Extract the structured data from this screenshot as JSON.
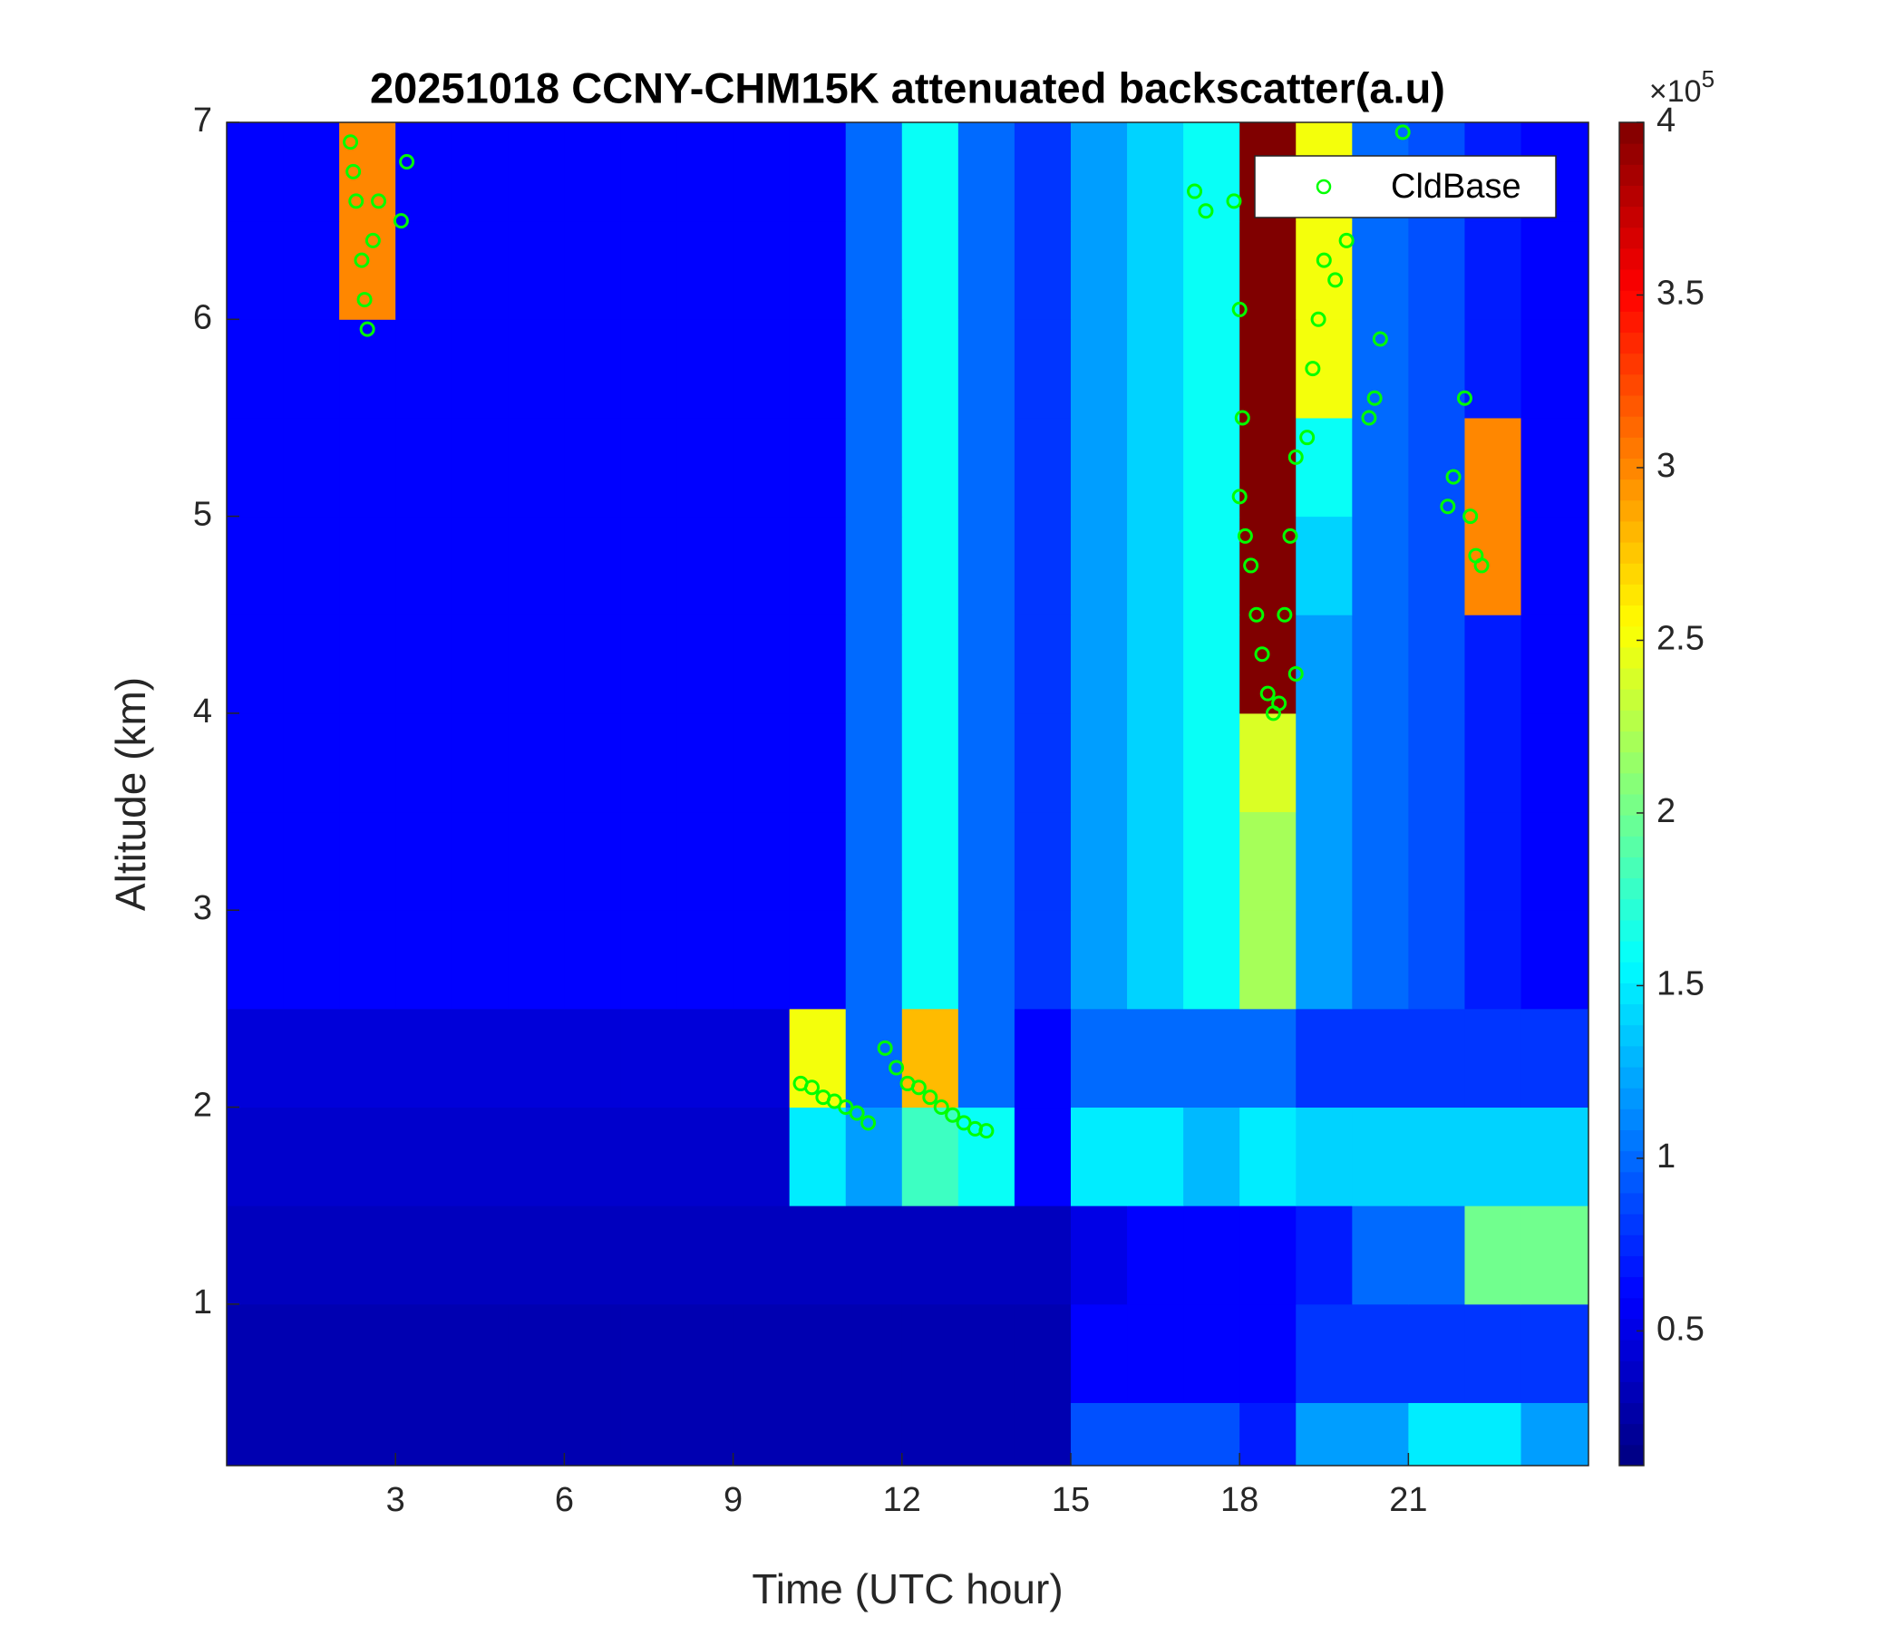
{
  "chart_data": {
    "type": "heatmap",
    "title": "20251018 CCNY-CHM15K attenuated backscatter(a.u)",
    "xlabel": "Time (UTC hour)",
    "ylabel": "Altitude (km)",
    "xlim": [
      0,
      24.2
    ],
    "ylim": [
      0.18,
      7
    ],
    "xticks": [
      3,
      6,
      9,
      12,
      15,
      18,
      21
    ],
    "yticks": [
      1,
      2,
      3,
      4,
      5,
      6,
      7
    ],
    "x_edges": [
      0,
      1,
      2,
      3,
      4,
      5,
      6,
      7,
      8,
      9,
      10,
      11,
      12,
      13,
      14,
      15,
      16,
      17,
      18,
      19,
      20,
      21,
      22,
      23,
      24.2
    ],
    "y_edges": [
      0.18,
      0.5,
      1,
      1.5,
      2,
      2.5,
      3,
      3.5,
      4,
      4.5,
      5,
      5.5,
      6,
      6.5,
      7
    ],
    "z": [
      [
        0.3,
        0.3,
        0.3,
        0.3,
        0.3,
        0.3,
        0.3,
        0.3,
        0.3,
        0.3,
        0.3,
        0.3,
        0.3,
        0.3,
        0.3,
        0.9,
        0.9,
        0.9,
        0.7,
        1.2,
        1.2,
        1.5,
        1.5,
        1.2
      ],
      [
        0.3,
        0.3,
        0.3,
        0.3,
        0.3,
        0.3,
        0.3,
        0.3,
        0.3,
        0.3,
        0.3,
        0.3,
        0.3,
        0.3,
        0.3,
        0.6,
        0.6,
        0.6,
        0.6,
        0.8,
        0.8,
        0.8,
        0.8,
        0.8
      ],
      [
        0.35,
        0.35,
        0.35,
        0.35,
        0.35,
        0.35,
        0.35,
        0.35,
        0.35,
        0.35,
        0.35,
        0.35,
        0.35,
        0.35,
        0.35,
        0.5,
        0.6,
        0.6,
        0.6,
        0.7,
        1,
        1,
        2,
        2
      ],
      [
        0.4,
        0.4,
        0.4,
        0.4,
        0.4,
        0.4,
        0.4,
        0.4,
        0.4,
        0.4,
        1.5,
        1.2,
        1.8,
        1.6,
        0.6,
        1.5,
        1.5,
        1.3,
        1.5,
        1.4,
        1.4,
        1.4,
        1.4,
        1.4
      ],
      [
        0.45,
        0.45,
        0.45,
        0.45,
        0.45,
        0.45,
        0.45,
        0.45,
        0.45,
        0.45,
        2.5,
        1,
        2.8,
        1,
        0.6,
        1,
        1,
        1,
        1,
        0.8,
        0.8,
        0.8,
        0.8,
        0.8
      ],
      [
        0.6,
        0.6,
        0.6,
        0.6,
        0.6,
        0.6,
        0.6,
        0.6,
        0.6,
        0.6,
        0.6,
        1,
        1.6,
        1,
        0.8,
        1.2,
        1.4,
        1.6,
        2.2,
        1.2,
        1,
        0.9,
        0.7,
        0.6
      ],
      [
        0.6,
        0.6,
        0.6,
        0.6,
        0.6,
        0.6,
        0.6,
        0.6,
        0.6,
        0.6,
        0.6,
        1,
        1.6,
        1,
        0.8,
        1.2,
        1.4,
        1.6,
        2.2,
        1.2,
        1,
        0.9,
        0.7,
        0.6
      ],
      [
        0.6,
        0.6,
        0.6,
        0.6,
        0.6,
        0.6,
        0.6,
        0.6,
        0.6,
        0.6,
        0.6,
        1,
        1.6,
        1,
        0.8,
        1.2,
        1.4,
        1.6,
        2.4,
        1.2,
        1,
        0.9,
        0.7,
        0.6
      ],
      [
        0.6,
        0.6,
        0.6,
        0.6,
        0.6,
        0.6,
        0.6,
        0.6,
        0.6,
        0.6,
        0.6,
        1,
        1.6,
        1,
        0.8,
        1.2,
        1.4,
        1.6,
        4,
        1.2,
        1,
        0.9,
        0.7,
        0.6
      ],
      [
        0.6,
        0.6,
        0.6,
        0.6,
        0.6,
        0.6,
        0.6,
        0.6,
        0.6,
        0.6,
        0.6,
        1,
        1.6,
        1,
        0.8,
        1.2,
        1.4,
        1.6,
        4,
        1.4,
        1,
        0.9,
        3,
        0.6
      ],
      [
        0.6,
        0.6,
        0.6,
        0.6,
        0.6,
        0.6,
        0.6,
        0.6,
        0.6,
        0.6,
        0.6,
        1,
        1.6,
        1,
        0.8,
        1.2,
        1.4,
        1.6,
        4,
        1.6,
        1,
        0.9,
        3,
        0.6
      ],
      [
        0.6,
        0.6,
        0.6,
        0.6,
        0.6,
        0.6,
        0.6,
        0.6,
        0.6,
        0.6,
        0.6,
        1,
        1.6,
        1,
        0.8,
        1.2,
        1.4,
        1.6,
        4,
        2.5,
        1,
        0.9,
        0.7,
        0.6
      ],
      [
        0.6,
        0.6,
        3,
        0.6,
        0.6,
        0.6,
        0.6,
        0.6,
        0.6,
        0.6,
        0.6,
        1,
        1.6,
        1,
        0.8,
        1.2,
        1.4,
        1.6,
        4,
        2.5,
        1,
        0.9,
        0.7,
        0.6
      ],
      [
        0.6,
        0.6,
        3,
        0.6,
        0.6,
        0.6,
        0.6,
        0.6,
        0.6,
        0.6,
        0.6,
        1,
        1.6,
        1,
        0.8,
        1.2,
        1.4,
        1.6,
        4,
        2.5,
        1,
        0.9,
        0.7,
        0.6
      ]
    ],
    "colormap": "jet",
    "clim": [
      0.11,
      4
    ],
    "cticks": [
      0.5,
      1,
      1.5,
      2,
      2.5,
      3,
      3.5,
      4
    ],
    "colorbar_multiplier": {
      "base": "×10",
      "exponent": "5"
    },
    "legend_location": "northeast",
    "overlay": {
      "type": "scatter",
      "name": "CldBase",
      "color": "#00ff00",
      "x": [
        2.2,
        2.25,
        2.3,
        2.4,
        2.45,
        2.5,
        2.6,
        2.7,
        3.1,
        3.2,
        10.2,
        10.4,
        10.6,
        10.8,
        11,
        11.2,
        11.4,
        11.7,
        11.9,
        12.1,
        12.3,
        12.5,
        12.7,
        12.9,
        13.1,
        13.3,
        13.5,
        17.2,
        17.4,
        17.9,
        18,
        18.05,
        18,
        18.1,
        18.2,
        18.3,
        18.4,
        18.5,
        18.6,
        18.7,
        18.8,
        19,
        18.9,
        19,
        19.2,
        19.3,
        19.4,
        19.5,
        19.7,
        19.9,
        20.3,
        20.4,
        20.5,
        21.7,
        21.8,
        22,
        22.1,
        22.2,
        22.3,
        20.9
      ],
      "y": [
        6.9,
        6.75,
        6.6,
        6.3,
        6.1,
        5.95,
        6.4,
        6.6,
        6.5,
        6.8,
        2.12,
        2.1,
        2.05,
        2.03,
        2,
        1.97,
        1.92,
        2.3,
        2.2,
        2.12,
        2.1,
        2.05,
        2,
        1.96,
        1.92,
        1.89,
        1.88,
        6.65,
        6.55,
        6.6,
        6.05,
        5.5,
        5.1,
        4.9,
        4.75,
        4.5,
        4.3,
        4.1,
        4,
        4.05,
        4.5,
        4.2,
        4.9,
        5.3,
        5.4,
        5.75,
        6,
        6.3,
        6.2,
        6.4,
        5.5,
        5.6,
        5.9,
        5.05,
        5.2,
        5.6,
        5,
        4.8,
        4.75,
        6.95
      ]
    }
  }
}
